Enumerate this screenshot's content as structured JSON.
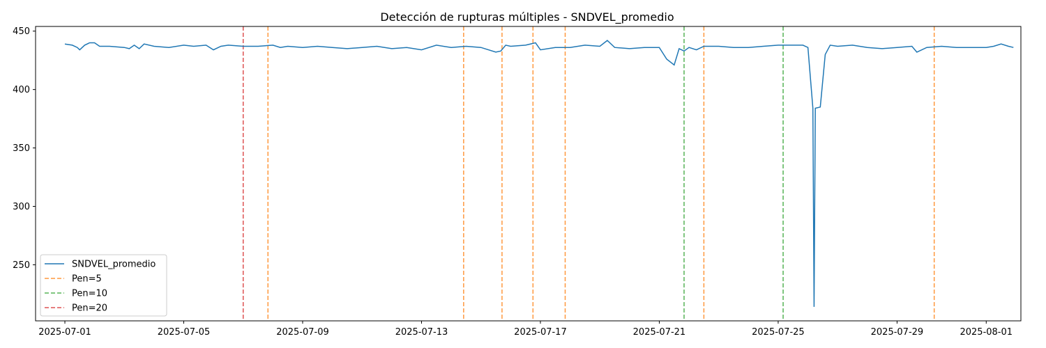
{
  "chart_data": {
    "type": "line",
    "title": "Detección de rupturas múltiples - SNDVEL_promedio",
    "xlabel": "",
    "ylabel": "",
    "x_axis": {
      "range": [
        "2025-06-30T00:20",
        "2025-08-02T04:00"
      ],
      "ticks": [
        "2025-07-01",
        "2025-07-05",
        "2025-07-09",
        "2025-07-13",
        "2025-07-17",
        "2025-07-21",
        "2025-07-25",
        "2025-07-29",
        "2025-08-01"
      ]
    },
    "y_axis": {
      "range": [
        202,
        454
      ],
      "ticks": [
        250,
        300,
        350,
        400,
        450
      ]
    },
    "grid": false,
    "legend_position": "lower-left",
    "series": [
      {
        "name": "SNDVEL_promedio",
        "color": "#1f77b4",
        "style": "solid",
        "points": [
          [
            "2025-07-01T00:00",
            439
          ],
          [
            "2025-07-01T06:00",
            438
          ],
          [
            "2025-07-01T10:00",
            436
          ],
          [
            "2025-07-01T12:00",
            434
          ],
          [
            "2025-07-01T16:00",
            438
          ],
          [
            "2025-07-01T20:00",
            440
          ],
          [
            "2025-07-02T00:00",
            440
          ],
          [
            "2025-07-02T04:00",
            437
          ],
          [
            "2025-07-02T12:00",
            437
          ],
          [
            "2025-07-03T00:00",
            436
          ],
          [
            "2025-07-03T04:00",
            435
          ],
          [
            "2025-07-03T08:00",
            438
          ],
          [
            "2025-07-03T12:00",
            435
          ],
          [
            "2025-07-03T16:00",
            439
          ],
          [
            "2025-07-04T00:00",
            437
          ],
          [
            "2025-07-04T12:00",
            436
          ],
          [
            "2025-07-05T00:00",
            438
          ],
          [
            "2025-07-05T08:00",
            437
          ],
          [
            "2025-07-05T18:00",
            438
          ],
          [
            "2025-07-06T00:00",
            434
          ],
          [
            "2025-07-06T06:00",
            437
          ],
          [
            "2025-07-06T12:00",
            438
          ],
          [
            "2025-07-07T00:00",
            437
          ],
          [
            "2025-07-07T12:00",
            437
          ],
          [
            "2025-07-08T00:00",
            438
          ],
          [
            "2025-07-08T06:00",
            436
          ],
          [
            "2025-07-08T12:00",
            437
          ],
          [
            "2025-07-09T00:00",
            436
          ],
          [
            "2025-07-09T12:00",
            437
          ],
          [
            "2025-07-10T00:00",
            436
          ],
          [
            "2025-07-10T12:00",
            435
          ],
          [
            "2025-07-11T00:00",
            436
          ],
          [
            "2025-07-11T12:00",
            437
          ],
          [
            "2025-07-12T00:00",
            435
          ],
          [
            "2025-07-12T12:00",
            436
          ],
          [
            "2025-07-13T00:00",
            434
          ],
          [
            "2025-07-13T12:00",
            438
          ],
          [
            "2025-07-14T00:00",
            436
          ],
          [
            "2025-07-14T12:00",
            437
          ],
          [
            "2025-07-15T00:00",
            436
          ],
          [
            "2025-07-15T12:00",
            432
          ],
          [
            "2025-07-15T16:00",
            433
          ],
          [
            "2025-07-15T20:00",
            438
          ],
          [
            "2025-07-16T00:00",
            437
          ],
          [
            "2025-07-16T12:00",
            438
          ],
          [
            "2025-07-16T20:00",
            440
          ],
          [
            "2025-07-17T00:00",
            434
          ],
          [
            "2025-07-17T12:00",
            436
          ],
          [
            "2025-07-18T00:00",
            436
          ],
          [
            "2025-07-18T12:00",
            438
          ],
          [
            "2025-07-19T00:00",
            437
          ],
          [
            "2025-07-19T06:00",
            442
          ],
          [
            "2025-07-19T12:00",
            436
          ],
          [
            "2025-07-20T00:00",
            435
          ],
          [
            "2025-07-20T12:00",
            436
          ],
          [
            "2025-07-21T00:00",
            436
          ],
          [
            "2025-07-21T06:00",
            426
          ],
          [
            "2025-07-21T12:00",
            421
          ],
          [
            "2025-07-21T16:00",
            435
          ],
          [
            "2025-07-21T20:00",
            433
          ],
          [
            "2025-07-22T00:00",
            436
          ],
          [
            "2025-07-22T06:00",
            434
          ],
          [
            "2025-07-22T12:00",
            437
          ],
          [
            "2025-07-23T00:00",
            437
          ],
          [
            "2025-07-23T12:00",
            436
          ],
          [
            "2025-07-24T00:00",
            436
          ],
          [
            "2025-07-24T12:00",
            437
          ],
          [
            "2025-07-25T00:00",
            438
          ],
          [
            "2025-07-25T12:00",
            438
          ],
          [
            "2025-07-25T20:00",
            438
          ],
          [
            "2025-07-26T00:00",
            436
          ],
          [
            "2025-07-26T04:00",
            384
          ],
          [
            "2025-07-26T05:00",
            214
          ],
          [
            "2025-07-26T06:00",
            384
          ],
          [
            "2025-07-26T10:00",
            385
          ],
          [
            "2025-07-26T14:00",
            430
          ],
          [
            "2025-07-26T18:00",
            438
          ],
          [
            "2025-07-27T00:00",
            437
          ],
          [
            "2025-07-27T12:00",
            438
          ],
          [
            "2025-07-28T00:00",
            436
          ],
          [
            "2025-07-28T12:00",
            435
          ],
          [
            "2025-07-29T00:00",
            436
          ],
          [
            "2025-07-29T12:00",
            437
          ],
          [
            "2025-07-29T16:00",
            432
          ],
          [
            "2025-07-30T00:00",
            436
          ],
          [
            "2025-07-30T12:00",
            437
          ],
          [
            "2025-07-31T00:00",
            436
          ],
          [
            "2025-07-31T12:00",
            436
          ],
          [
            "2025-08-01T00:00",
            436
          ],
          [
            "2025-08-01T06:00",
            437
          ],
          [
            "2025-08-01T12:00",
            439
          ],
          [
            "2025-08-01T18:00",
            437
          ],
          [
            "2025-08-01T22:00",
            436
          ]
        ]
      },
      {
        "name": "Pen=5",
        "color": "#ff7f0e",
        "style": "dashed",
        "breakpoints": [
          "2025-07-07T20:00",
          "2025-07-14T10:00",
          "2025-07-15T17:00",
          "2025-07-16T18:00",
          "2025-07-17T20:00",
          "2025-07-22T12:00",
          "2025-07-30T06:00"
        ]
      },
      {
        "name": "Pen=10",
        "color": "#2ca02c",
        "style": "dashed",
        "breakpoints": [
          "2025-07-21T20:00",
          "2025-07-25T04:00"
        ]
      },
      {
        "name": "Pen=20",
        "color": "#d62728",
        "style": "dashed",
        "breakpoints": [
          "2025-07-07T00:00"
        ]
      }
    ]
  }
}
